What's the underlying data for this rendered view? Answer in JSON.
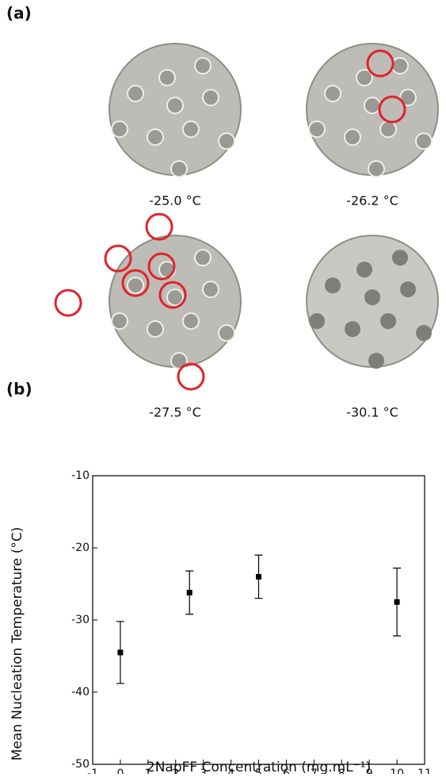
{
  "panels": {
    "a": "(a)",
    "b": "(b)"
  },
  "images": [
    {
      "caption": "-25.0 °C"
    },
    {
      "caption": "-26.2 °C"
    },
    {
      "caption": "-27.5 °C"
    },
    {
      "caption": "-30.1 °C"
    }
  ],
  "chart_data": {
    "type": "scatter",
    "x_label": "2NapFF Concentration (mg.mL⁻¹)",
    "y_label": "Mean Nucleation Temperature (°C)",
    "series": [
      {
        "color": "#000000",
        "x": [
          0,
          2.5,
          5,
          10
        ],
        "values": [
          -34.5,
          -26.2,
          -24,
          -27.5
        ],
        "errors": [
          4.3,
          3.0,
          3.0,
          4.7
        ]
      }
    ],
    "xlim": [
      -1,
      11
    ],
    "xticks": [
      -1,
      0,
      1,
      2,
      3,
      4,
      5,
      6,
      7,
      8,
      9,
      10,
      11
    ],
    "ylim": [
      -50,
      -10
    ],
    "yticks": [
      -50,
      -40,
      -30,
      -20,
      -10
    ]
  }
}
